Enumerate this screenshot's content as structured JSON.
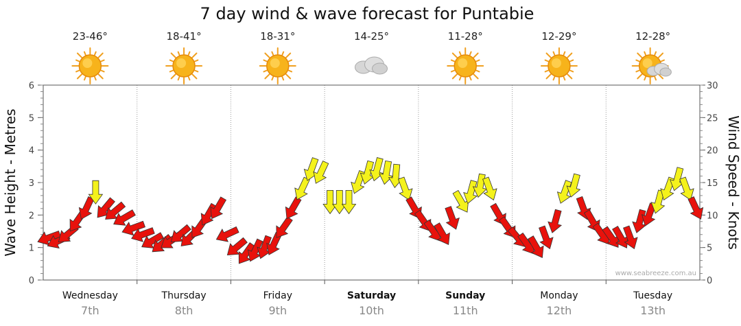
{
  "chart_data": {
    "type": "line",
    "title": "7 day wind & wave forecast for Puntabie",
    "ylabel_left": "Wave Height - Metres",
    "ylabel_right": "Wind Speed - Knots",
    "ylim_left": [
      0,
      6
    ],
    "ylim_right": [
      0,
      30
    ],
    "yticks_left": [
      "0",
      "1",
      "2",
      "3",
      "4",
      "5",
      "6"
    ],
    "yticks_right": [
      "0",
      "5",
      "10",
      "15",
      "20",
      "25",
      "30"
    ],
    "grid": true,
    "credit": "www.seabreeze.com.au",
    "days": [
      {
        "name": "Wednesday",
        "date": "7th",
        "bold": false,
        "temp": "23-46°",
        "icon": "sun-icon"
      },
      {
        "name": "Thursday",
        "date": "8th",
        "bold": false,
        "temp": "18-41°",
        "icon": "sun-icon"
      },
      {
        "name": "Friday",
        "date": "9th",
        "bold": false,
        "temp": "18-31°",
        "icon": "sun-icon"
      },
      {
        "name": "Saturday",
        "date": "10th",
        "bold": true,
        "temp": "14-25°",
        "icon": "cloud-icon"
      },
      {
        "name": "Sunday",
        "date": "11th",
        "bold": true,
        "temp": "11-28°",
        "icon": "sun-icon"
      },
      {
        "name": "Monday",
        "date": "12th",
        "bold": false,
        "temp": "12-29°",
        "icon": "sun-icon"
      },
      {
        "name": "Tuesday",
        "date": "13th",
        "bold": false,
        "temp": "12-28°",
        "icon": "partly-cloudy-icon"
      }
    ],
    "colors": {
      "low_wind_arrow": "#e8120c",
      "high_wind_arrow": "#f4f21c",
      "grid": "#999999"
    },
    "wind_series": {
      "name": "Wind Speed (knots)",
      "color_threshold_knots": 12,
      "day_offsets": [
        0,
        0.1,
        0.2,
        0.3,
        0.4,
        0.5,
        0.6,
        0.7,
        0.8,
        0.9,
        1.0,
        1.1,
        1.2,
        1.3,
        1.4,
        1.5,
        1.6,
        1.7,
        1.8,
        1.9,
        2.0,
        2.1,
        2.2,
        2.3,
        2.4,
        2.5,
        2.6,
        2.7,
        2.8,
        2.9,
        3.0,
        3.1,
        3.2,
        3.3,
        3.4,
        3.5,
        3.6,
        3.7,
        3.8,
        3.9,
        4.0,
        4.1,
        4.2,
        4.3,
        4.4,
        4.5,
        4.6,
        4.7,
        4.8,
        4.9,
        5.0,
        5.1,
        5.2,
        5.3,
        5.4,
        5.5,
        5.6,
        5.7,
        5.8,
        5.9,
        6.0,
        6.1,
        6.2,
        6.3,
        6.4,
        6.5,
        6.6,
        6.7,
        6.8,
        6.9
      ],
      "speed_knots": [
        6.5,
        6,
        7,
        9,
        11,
        13.5,
        11,
        10.5,
        9.5,
        8,
        7,
        6,
        5.5,
        6,
        7,
        6.5,
        8,
        10,
        11,
        7,
        5,
        4,
        4.5,
        5,
        5.5,
        8,
        11,
        14,
        17,
        16.5,
        12,
        12,
        12,
        15,
        16.5,
        17,
        16.5,
        16,
        14,
        11,
        9,
        7.5,
        7,
        9.5,
        12,
        13.5,
        14.5,
        14,
        10,
        8,
        6.5,
        5.5,
        5,
        6.5,
        9,
        13.5,
        14.5,
        11,
        9,
        7,
        6.5,
        6.5,
        6.5,
        9,
        10,
        12,
        14,
        15.5,
        14,
        11
      ],
      "direction_deg": [
        250,
        245,
        230,
        215,
        205,
        180,
        220,
        230,
        240,
        250,
        250,
        240,
        230,
        235,
        230,
        225,
        215,
        210,
        210,
        245,
        230,
        215,
        205,
        200,
        205,
        215,
        210,
        205,
        200,
        205,
        180,
        180,
        180,
        200,
        195,
        195,
        190,
        185,
        160,
        150,
        145,
        145,
        150,
        160,
        150,
        195,
        190,
        160,
        150,
        145,
        140,
        145,
        150,
        160,
        195,
        200,
        195,
        160,
        150,
        145,
        145,
        150,
        160,
        195,
        200,
        195,
        200,
        195,
        160,
        155
      ]
    }
  }
}
